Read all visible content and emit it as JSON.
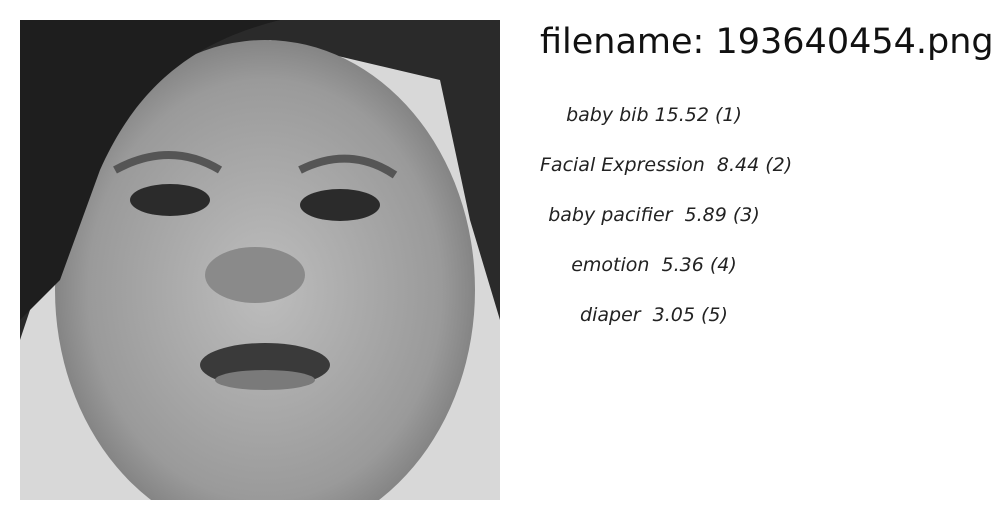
{
  "filename": "filename: 193640454.png",
  "labels": [
    "baby bib 15.52 (1)",
    "Facial Expression  8.44 (2)",
    "baby pacifier  5.89 (3)",
    "emotion  5.36 (4)",
    "diaper  3.05 (5)"
  ]
}
